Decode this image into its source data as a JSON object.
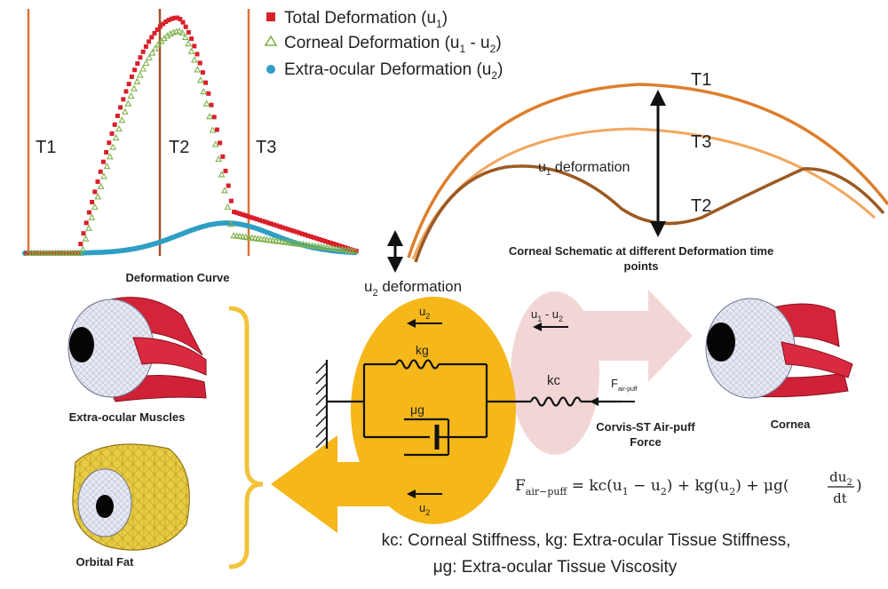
{
  "colors": {
    "total": "#d91f2a",
    "corneal": "#7fb24a",
    "extra": "#2e9ec4",
    "phase_line": "#d9733a",
    "phase_line_t2": "#a0522d",
    "t1_curve": "#dd7f2c",
    "t3_curve": "#f0a860",
    "t2_curve": "#9c5a23",
    "model_blob": "#f5b719",
    "pink_arrow": "#f2d6d6",
    "bracket": "#f2c33a"
  },
  "plot": {
    "phase_labels": [
      "T1",
      "T2",
      "T3"
    ],
    "title": "Deformation Curve",
    "legend": [
      {
        "key": "total",
        "text": "Total Deformation (u",
        "sub": "1",
        "tail": ")"
      },
      {
        "key": "corneal",
        "text": "Corneal Deformation (u",
        "sub": "1",
        "mid": " - u",
        "sub2": "2",
        "tail": ")"
      },
      {
        "key": "extra",
        "text": "Extra-ocular Deformation (u",
        "sub": "2",
        "tail": ")"
      }
    ]
  },
  "schematic": {
    "t1": "T1",
    "t3": "T3",
    "t2": "T2",
    "u1_label": "u",
    "u1_sub": "1",
    "u1_tail": " deformation",
    "caption_line1": "Corneal Schematic at different Deformation time",
    "caption_line2": "points"
  },
  "model": {
    "u2_deformation": "u",
    "u2_deformation_sub": "2",
    "u2_deformation_tail": " deformation",
    "u2_top": "u",
    "u2_top_sub": "2",
    "kg": "kg",
    "mu_g": "μg",
    "u2_bottom": "u",
    "u2_bottom_sub": "2",
    "kc": "kc",
    "u1_minus_u2": "u",
    "u1_minus_u2_sub1": "1",
    "u1_minus_u2_mid": " - u",
    "u1_minus_u2_sub2": "2",
    "f_air": "F",
    "f_air_sub": "air-puff",
    "air_puff_line1": "Corvis-ST Air-puff",
    "air_puff_line2": "Force"
  },
  "anatomy": {
    "muscles_label": "Extra-ocular Muscles",
    "fat_label": "Orbital Fat",
    "cornea_label": "Cornea"
  },
  "equation": {
    "lhs": "F",
    "lhs_sub": "air−puff",
    "rhs_part1": " = kc(u",
    "s1": "1",
    "rhs_part2": " − u",
    "s2": "2",
    "rhs_part3": ") +  kg(u",
    "s3": "2",
    "rhs_part4": ") +  μg(",
    "frac_num": "du",
    "frac_num_sub": "2",
    "frac_den": "dt",
    "rhs_part5": ")"
  },
  "footer": {
    "line1": "kc: Corneal Stiffness, kg: Extra-ocular Tissue Stiffness,",
    "line2": "μg: Extra-ocular Tissue Viscosity"
  }
}
